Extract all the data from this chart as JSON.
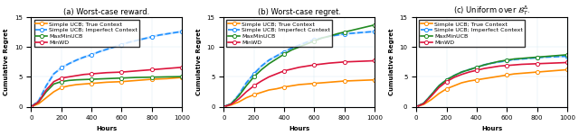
{
  "figsize": [
    6.4,
    1.5
  ],
  "dpi": 100,
  "x": [
    0,
    50,
    100,
    150,
    200,
    250,
    300,
    350,
    400,
    450,
    500,
    550,
    600,
    650,
    700,
    750,
    800,
    850,
    900,
    950,
    1000
  ],
  "plots": [
    {
      "title": "(a) Worst-case reward.",
      "ylabel": "Cumulative Regret",
      "xlabel": "Hours",
      "ylim": [
        0,
        15
      ],
      "yticks": [
        0,
        5,
        10,
        15
      ],
      "series": {
        "simple_ucb_true": [
          0,
          0.5,
          1.5,
          2.5,
          3.2,
          3.5,
          3.7,
          3.8,
          3.9,
          4.0,
          4.1,
          4.15,
          4.2,
          4.3,
          4.4,
          4.5,
          4.6,
          4.65,
          4.7,
          4.8,
          4.9
        ],
        "simple_ucb_imperfect": [
          0,
          1.0,
          3.5,
          5.5,
          6.5,
          7.2,
          7.8,
          8.3,
          8.7,
          9.2,
          9.6,
          10.0,
          10.4,
          10.8,
          11.1,
          11.4,
          11.7,
          12.0,
          12.2,
          12.4,
          12.6
        ],
        "maxminucb": [
          0,
          0.8,
          2.5,
          3.8,
          4.2,
          4.4,
          4.5,
          4.55,
          4.6,
          4.65,
          4.7,
          4.75,
          4.8,
          4.85,
          4.9,
          4.92,
          4.95,
          4.97,
          5.0,
          5.02,
          5.05
        ],
        "minwd": [
          0,
          0.8,
          2.8,
          4.2,
          4.8,
          5.0,
          5.2,
          5.4,
          5.5,
          5.6,
          5.7,
          5.75,
          5.8,
          5.9,
          6.0,
          6.1,
          6.2,
          6.3,
          6.4,
          6.5,
          6.6
        ]
      }
    },
    {
      "title": "(b) Worst-case regret.",
      "ylabel": "Cumulative Regret",
      "xlabel": "Hours",
      "ylim": [
        0,
        15
      ],
      "yticks": [
        0,
        5,
        10,
        15
      ],
      "series": {
        "simple_ucb_true": [
          0,
          0.3,
          0.8,
          1.5,
          2.0,
          2.4,
          2.8,
          3.0,
          3.3,
          3.5,
          3.7,
          3.8,
          3.9,
          4.0,
          4.1,
          4.2,
          4.3,
          4.35,
          4.4,
          4.45,
          4.5
        ],
        "simple_ucb_imperfect": [
          0,
          0.5,
          2.0,
          4.0,
          5.5,
          6.8,
          7.8,
          8.5,
          9.2,
          9.8,
          10.3,
          10.8,
          11.2,
          11.5,
          11.8,
          12.0,
          12.2,
          12.3,
          12.4,
          12.5,
          12.6
        ],
        "maxminucb": [
          0,
          0.5,
          1.8,
          3.5,
          5.0,
          6.2,
          7.2,
          8.0,
          8.8,
          9.5,
          10.0,
          10.5,
          11.0,
          11.5,
          11.8,
          12.2,
          12.5,
          12.8,
          13.1,
          13.4,
          13.7
        ],
        "minwd": [
          0,
          0.4,
          1.3,
          2.5,
          3.5,
          4.3,
          5.0,
          5.5,
          6.0,
          6.3,
          6.6,
          6.8,
          7.0,
          7.15,
          7.3,
          7.4,
          7.5,
          7.55,
          7.6,
          7.65,
          7.7
        ]
      }
    },
    {
      "title": "(c) Uniform over $\\mathcal{B}_T^{\\Delta}$.",
      "ylabel": "Cumulative Regret",
      "xlabel": "Hours",
      "ylim": [
        0,
        15
      ],
      "yticks": [
        0,
        5,
        10,
        15
      ],
      "series": {
        "simple_ucb_true": [
          0,
          0.4,
          1.2,
          2.2,
          3.0,
          3.5,
          4.0,
          4.3,
          4.5,
          4.7,
          4.9,
          5.1,
          5.3,
          5.5,
          5.6,
          5.7,
          5.8,
          5.9,
          6.0,
          6.1,
          6.2
        ],
        "simple_ucb_imperfect": [
          0,
          0.6,
          2.0,
          3.5,
          4.5,
          5.2,
          5.8,
          6.2,
          6.6,
          7.0,
          7.3,
          7.5,
          7.7,
          7.9,
          8.0,
          8.1,
          8.2,
          8.3,
          8.35,
          8.4,
          8.45
        ],
        "maxminucb": [
          0,
          0.6,
          2.0,
          3.5,
          4.5,
          5.2,
          5.8,
          6.2,
          6.6,
          7.0,
          7.3,
          7.6,
          7.8,
          8.0,
          8.1,
          8.2,
          8.3,
          8.4,
          8.5,
          8.6,
          8.7
        ],
        "minwd": [
          0,
          0.5,
          1.8,
          3.2,
          4.2,
          4.9,
          5.4,
          5.8,
          6.1,
          6.4,
          6.6,
          6.8,
          6.9,
          7.0,
          7.1,
          7.15,
          7.2,
          7.25,
          7.3,
          7.35,
          7.4
        ]
      }
    }
  ],
  "colors": {
    "simple_ucb_true": "#FF8C00",
    "simple_ucb_imperfect": "#1E90FF",
    "maxminucb": "#228B22",
    "minwd": "#DC143C"
  },
  "legend_labels": {
    "simple_ucb_true": "Simple UCB; True Context",
    "simple_ucb_imperfect": "Simple UCB; Imperfect Context",
    "maxminucb": "MaxMinUCB",
    "minwd": "MinWD"
  },
  "marker": "o",
  "markersize": 3,
  "linewidth": 1.2,
  "fontsize_title": 6,
  "fontsize_label": 5,
  "fontsize_legend": 4.5,
  "fontsize_tick": 5
}
